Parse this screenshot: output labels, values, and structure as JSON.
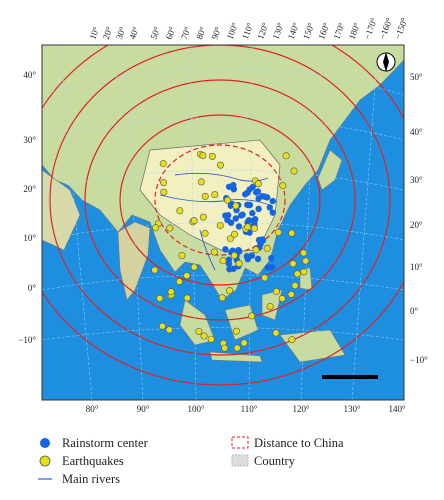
{
  "map": {
    "top_ticks": [
      "10°",
      "20°",
      "30°",
      "40°",
      "50°",
      "60°",
      "70°",
      "80°",
      "90°",
      "100°",
      "110°",
      "120°",
      "130°",
      "140°",
      "150°",
      "160°",
      "170°",
      "180°",
      "−170°",
      "−160°",
      "−150°"
    ],
    "bottom_ticks": [
      "80°",
      "90°",
      "100°",
      "110°",
      "120°",
      "130°",
      "140°"
    ],
    "left_ticks": [
      "40°",
      "30°",
      "20°",
      "10°",
      "0°",
      "−10°"
    ],
    "right_ticks": [
      "50°",
      "40°",
      "30°",
      "20°",
      "10°",
      "0°",
      "−10°"
    ]
  },
  "legend": {
    "items": [
      "Rainstorm center",
      "Earthquakes",
      "Main rivers",
      "Distance to China",
      "Country"
    ]
  }
}
